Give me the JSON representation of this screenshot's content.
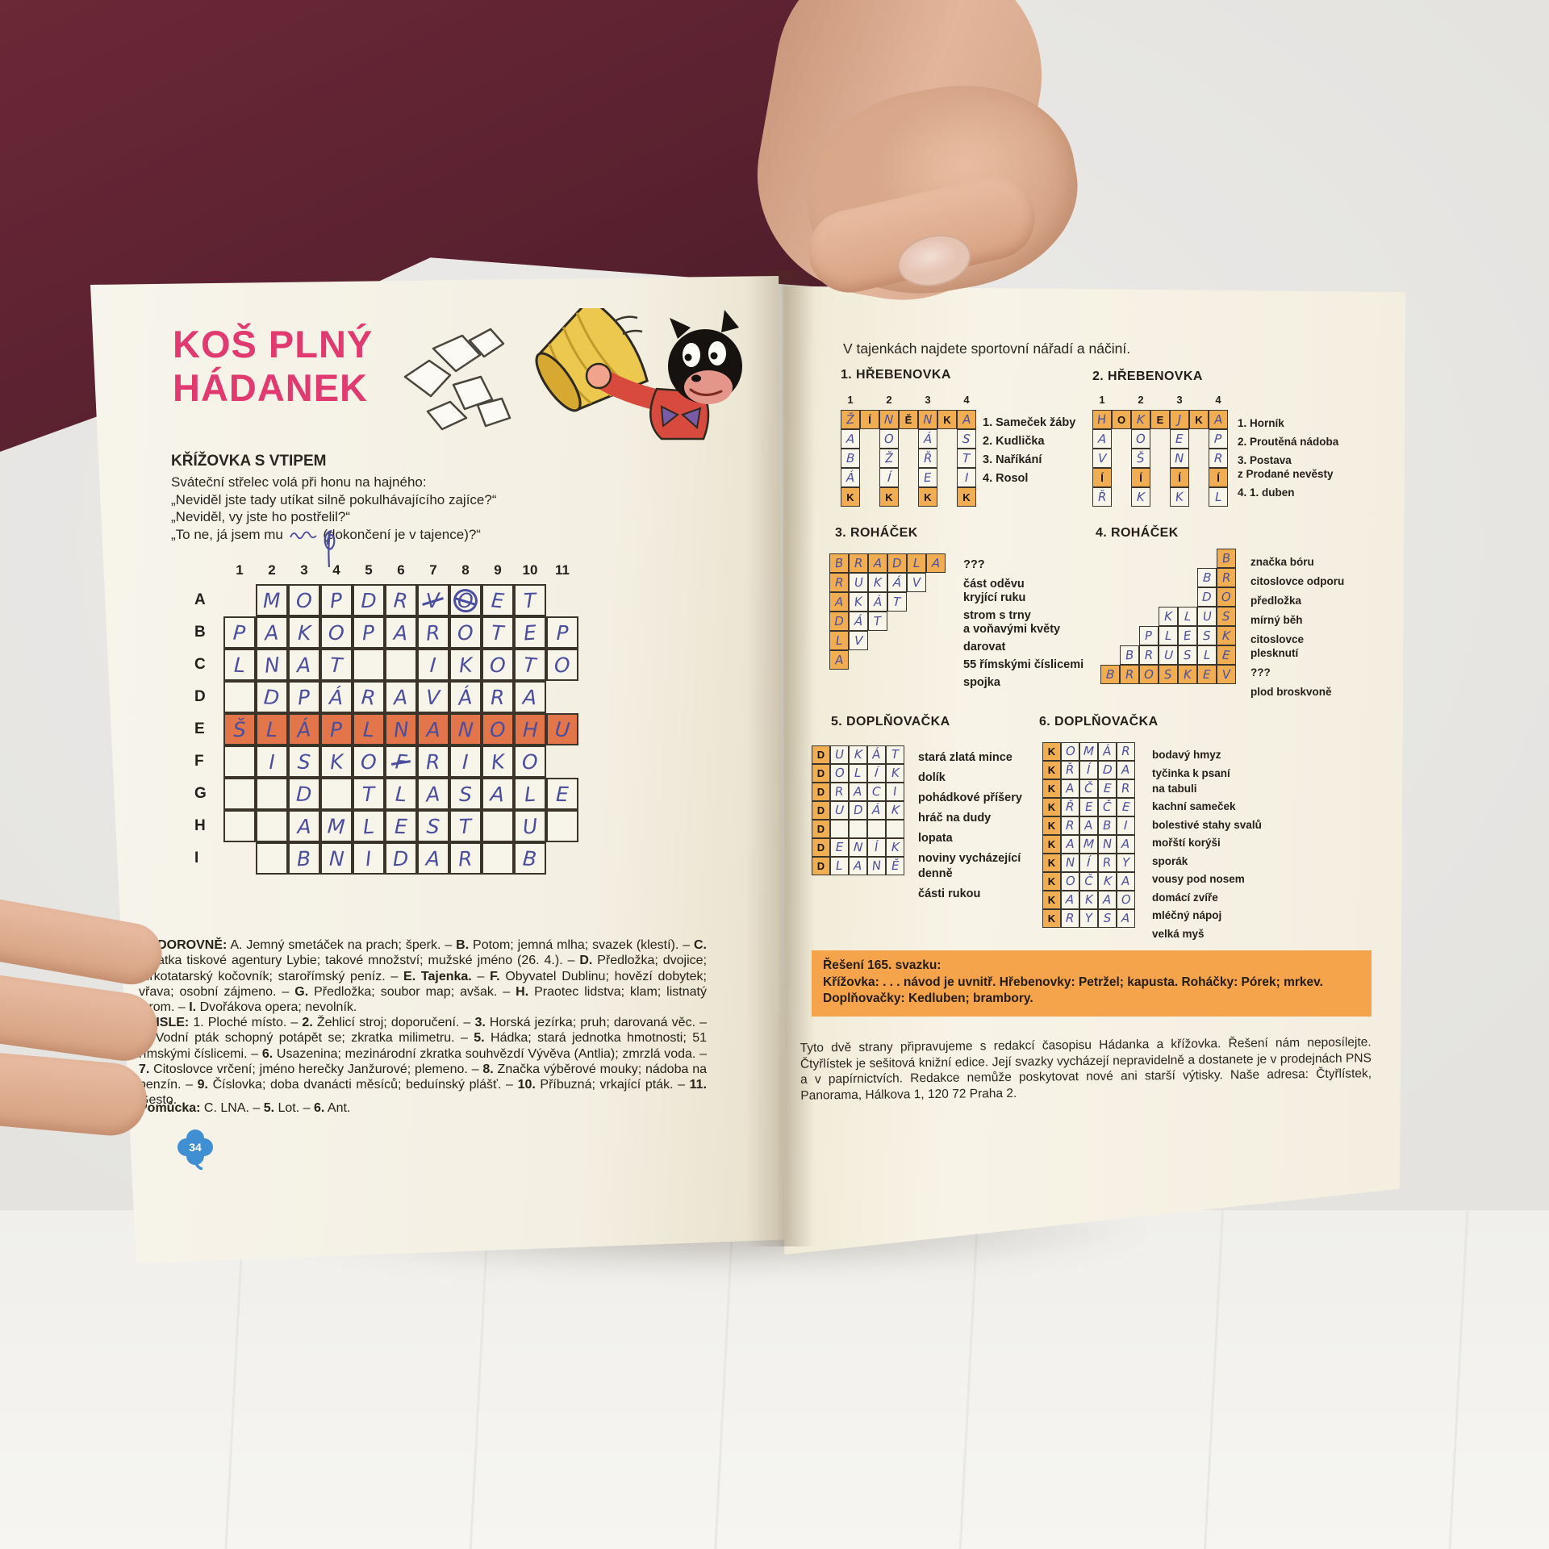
{
  "colors": {
    "title_pink": "#e13a70",
    "accent_orange": "#f0ad52",
    "highlight_row": "#e2764a",
    "handwriting_blue": "#4b4e9e",
    "solution_box": "#f5a44c",
    "clover_blue": "#3f8fd2",
    "sleeve_maroon": "#5a2130",
    "skin": "#dcab91",
    "page_cream": "#f4f0e3"
  },
  "left_page": {
    "title_line1": "KOŠ PLNÝ",
    "title_line2": "HÁDANEK",
    "section_heading": "KŘÍŽOVKA S VTIPEM",
    "intro_lines": [
      "Sváteční střelec volá při honu na hajného:",
      "„Neviděl jste tady utíkat silně pokulhávajícího zajíce?“",
      "„Neviděl, vy jste ho postřelil?“"
    ],
    "intro_line4_prefix": "„To ne, já jsem mu",
    "intro_line4_suffix": "(dokončení je v tajence)?“",
    "crossword": {
      "col_numbers": [
        "1",
        "2",
        "3",
        "4",
        "5",
        "6",
        "7",
        "8",
        "9",
        "10",
        "11"
      ],
      "highlight_row": "E",
      "rows": [
        {
          "label": "A",
          "cells": [
            "#",
            "M",
            "O",
            "P",
            "D",
            "R",
            "V*",
            "O**",
            "E",
            "T",
            "#"
          ]
        },
        {
          "label": "B",
          "cells": [
            "P",
            "A",
            "K",
            "O",
            "P",
            "A",
            "R",
            "O",
            "T",
            "E",
            "P"
          ]
        },
        {
          "label": "C",
          "cells": [
            "L",
            "N",
            "A",
            "T",
            "",
            "",
            "I",
            "K",
            "O",
            "T",
            "O"
          ]
        },
        {
          "label": "D",
          "cells": [
            "",
            "D",
            "P",
            "Á",
            "R",
            "A",
            "V",
            "Á",
            "R",
            "A",
            "#"
          ]
        },
        {
          "label": "E",
          "cells": [
            "Š",
            "L",
            "Á",
            "P",
            "L",
            "N",
            "A",
            "N",
            "O",
            "H",
            "U"
          ]
        },
        {
          "label": "F",
          "cells": [
            "",
            "I",
            "S",
            "K",
            "O",
            "F*",
            "R",
            "I",
            "K",
            "O",
            "#"
          ]
        },
        {
          "label": "G",
          "cells": [
            "",
            "",
            "D",
            "",
            "T",
            "L",
            "A",
            "S",
            "A",
            "L",
            "E"
          ]
        },
        {
          "label": "H",
          "cells": [
            "",
            "",
            "A",
            "M",
            "L",
            "E",
            "S",
            "T",
            "",
            "U",
            ""
          ]
        },
        {
          "label": "I",
          "cells": [
            "#",
            "",
            "B",
            "N",
            "I",
            "D",
            "A",
            "R",
            "",
            "B",
            "#"
          ]
        }
      ]
    },
    "clues_across": "VODOROVNĚ: A. Jemný smetáček na prach; šperk. – B. Potom; jemná mlha; svazek (klestí). – C. Zkratka tiskové agentury Lybie; takové množství; mužské jméno (26. 4.). – D. Předložka; dvojice; turkotatarský kočovník; starořímský peníz. – E. Tajenka. – F. Obyvatel Dublinu; hovězí dobytek; vřava; osobní zájmeno. – G. Předložka; soubor map; avšak. – H. Praotec lidstva; klam; listnatý strom. – I. Dvořákova opera; nevolník.",
    "clues_down": "SVISLE: 1. Ploché místo. – 2. Žehlicí stroj; doporučení. – 3. Horská jezírka; pruh; darovaná věc. – 4. Vodní pták schopný potápět se; zkratka milimetru. – 5. Hádka; stará jednotka hmotnosti; 51 římskými číslicemi. – 6. Usazenina; mezinárodní zkratka souhvězdí Vývěva (Antlia); zmrzlá voda. – 7. Citoslovce vrčení; jméno herečky Janžurové; plemeno. – 8. Značka výběrové mouky; nádoba na benzín. – 9. Číslovka; doba dvanácti měsíců; beduínský plášť. – 10. Příbuzná; vrkající pták. – 11. Gesto.",
    "helper": "Pomůcka: C. LNA. – 5. Lot. – 6. Ant.",
    "page_number": "34"
  },
  "right_page": {
    "intro": "V tajenkách najdete sportovní nářadí a náčiní.",
    "puzzles": [
      {
        "heading": "1. HŘEBENOVKA",
        "type": "hrebenovka",
        "col_numbers": [
          "1",
          "2",
          "3",
          "4"
        ],
        "top_row": [
          "Ž",
          "Í",
          "N",
          "Ě",
          "N",
          "K",
          "A"
        ],
        "printed_top": [
          1,
          3,
          5
        ],
        "below": [
          [
            {
              "t": "A"
            },
            {
              "t": "B"
            },
            {
              "t": "Á"
            },
            {
              "t": "K",
              "o": 1,
              "p": 1
            }
          ],
          [
            {
              "t": "O"
            },
            {
              "t": "Ž"
            },
            {
              "t": "Í"
            },
            {
              "t": "K",
              "o": 1,
              "p": 1
            }
          ],
          [
            {
              "t": "Á"
            },
            {
              "t": "Ř"
            },
            {
              "t": "E"
            },
            {
              "t": "K",
              "o": 1,
              "p": 1
            }
          ],
          [
            {
              "t": "S"
            },
            {
              "t": "T"
            },
            {
              "t": "I"
            },
            {
              "t": "K",
              "o": 1,
              "p": 1
            }
          ]
        ],
        "clues": [
          "1. Sameček žáby",
          "2. Kudlička",
          "3. Naříkání",
          "4. Rosol"
        ]
      },
      {
        "heading": "2. HŘEBENOVKA",
        "type": "hrebenovka",
        "col_numbers": [
          "1",
          "2",
          "3",
          "4"
        ],
        "top_row": [
          "H",
          "O",
          "K",
          "E",
          "J",
          "K",
          "A"
        ],
        "printed_top": [
          1,
          3,
          5
        ],
        "below": [
          [
            {
              "t": "A"
            },
            {
              "t": "V"
            },
            {
              "t": "Í",
              "o": 1,
              "p": 1
            },
            {
              "t": "Ř"
            }
          ],
          [
            {
              "t": "O"
            },
            {
              "t": "Š"
            },
            {
              "t": "Í",
              "o": 1,
              "p": 1
            },
            {
              "t": "K"
            }
          ],
          [
            {
              "t": "E"
            },
            {
              "t": "N"
            },
            {
              "t": "Í",
              "o": 1,
              "p": 1
            },
            {
              "t": "K"
            }
          ],
          [
            {
              "t": "P"
            },
            {
              "t": "R"
            },
            {
              "t": "Í",
              "o": 1,
              "p": 1
            },
            {
              "t": "L"
            }
          ]
        ],
        "clues": [
          "1. Horník",
          "2. Proutěná nádoba",
          "3. Postava\nz Prodané nevěsty",
          "4. 1. duben"
        ]
      },
      {
        "heading": "3. ROHÁČEK",
        "type": "rohacek-left",
        "rows": [
          "BRADLA",
          "RUKÁV",
          "AKÁT",
          "DÁT",
          "LV",
          "A"
        ],
        "clues": [
          "???",
          "část oděvu\nkryjící ruku",
          "strom s trny\na voňavými květy",
          "darovat",
          "55 římskými číslicemi",
          "spojka"
        ]
      },
      {
        "heading": "4. ROHÁČEK",
        "type": "rohacek-right",
        "rows": [
          "B",
          "BR",
          "DO",
          "KLUS",
          "PLESK",
          "BRUSLE",
          "BROSKEV"
        ],
        "clues": [
          "značka bóru",
          "citoslovce odporu",
          "předložka",
          "mírný běh",
          "citoslovce\nplesknutí",
          "???",
          "plod broskvoně"
        ]
      },
      {
        "heading": "5. DOPLŇOVAČKA",
        "type": "doplnovacka",
        "key_letter": "D",
        "rows": [
          [
            "U",
            "K",
            "Á",
            "T"
          ],
          [
            "O",
            "L",
            "Í",
            "K"
          ],
          [
            "R",
            "A",
            "C",
            "I"
          ],
          [
            "U",
            "D",
            "Á",
            "K"
          ],
          [
            "",
            "",
            "",
            ""
          ],
          [
            "E",
            "N",
            "Í",
            "K"
          ],
          [
            "L",
            "A",
            "N",
            "Ě"
          ]
        ],
        "clues": [
          "stará zlatá mince",
          "dolík",
          "pohádkové příšery",
          "hráč na dudy",
          "lopata",
          "noviny vycházející\ndenně",
          "části rukou"
        ]
      },
      {
        "heading": "6. DOPLŇOVAČKA",
        "type": "doplnovacka",
        "key_letter": "K",
        "rows": [
          [
            "O",
            "M",
            "Á",
            "R"
          ],
          [
            "Ř",
            "Í",
            "D",
            "A"
          ],
          [
            "A",
            "Č",
            "E",
            "R"
          ],
          [
            "Ř",
            "E",
            "Č",
            "E"
          ],
          [
            "R",
            "A",
            "B",
            "I"
          ],
          [
            "A",
            "M",
            "N",
            "A"
          ],
          [
            "N",
            "Í",
            "R",
            "Y"
          ],
          [
            "O",
            "Č",
            "K",
            "A"
          ],
          [
            "A",
            "K",
            "A",
            "O"
          ],
          [
            "R",
            "Y",
            "S",
            "A"
          ]
        ],
        "clues": [
          "bodavý hmyz",
          "tyčinka k psaní\nna tabuli",
          "kachní sameček",
          "bolestivé stahy svalů",
          "mořští korýši",
          "sporák",
          "vousy pod nosem",
          "domácí zvíře",
          "mléčný nápoj",
          "velká myš"
        ]
      }
    ],
    "solution_box": {
      "title": "Řešení 165. svazku:",
      "body": "Křížovka: . . .  návod je uvnitř. Hřebenovky: Petržel; kapusta. Roháčky: Pórek; mrkev. Doplňovačky: Kedluben; brambory."
    },
    "footer": "Tyto dvě strany připravujeme s redakcí časopisu Hádanka a křížovka. Řešení nám neposílejte. Čtyřlístek je sešitová knižní edice. Její svazky vycházejí nepravidelně a dostanete je v prodejnách PNS a v papírnictvích. Redakce nemůže poskytovat nové ani starší výtisky. Naše adresa: Čtyřlístek, Panorama, Hálkova 1, 120 72 Praha 2."
  }
}
